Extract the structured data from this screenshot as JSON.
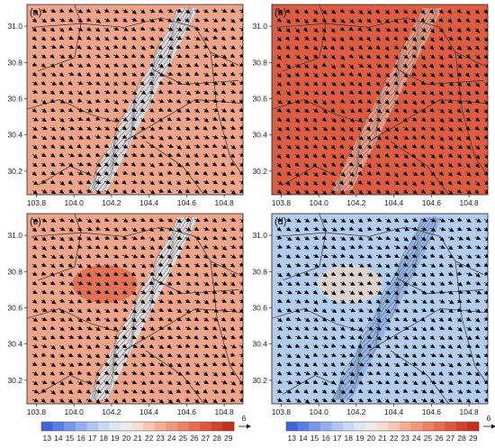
{
  "panels": [
    {
      "label": "(a)",
      "base_color": "#f0a489",
      "warm_color": "#ea8867",
      "cool_color": "#d9dde4",
      "warm_blob": false
    },
    {
      "label": "(b)",
      "base_color": "#de5c42",
      "warm_color": "#d94c34",
      "cool_color": "#e9a08a",
      "warm_blob": false
    },
    {
      "label": "(c)",
      "base_color": "#f0a489",
      "warm_color": "#e06a4c",
      "cool_color": "#dfe0e6",
      "warm_blob": true
    },
    {
      "label": "(d)",
      "base_color": "#b3cdee",
      "warm_color": "#e6d4cc",
      "cool_color": "#8fb3e8",
      "warm_blob": true
    }
  ],
  "axes": {
    "x_ticks": [
      "103.8",
      "104.0",
      "104.2",
      "104.4",
      "104.6",
      "104.8"
    ],
    "y_ticks": [
      "31.0",
      "30.8",
      "30.6",
      "30.4",
      "30.2"
    ],
    "x_range": [
      103.75,
      104.9
    ],
    "y_range": [
      30.07,
      31.12
    ]
  },
  "colorbar": {
    "labels": [
      "13",
      "14",
      "15",
      "16",
      "17",
      "18",
      "19",
      "20",
      "21",
      "22",
      "23",
      "24",
      "25",
      "26",
      "27",
      "28",
      "29"
    ],
    "colors": [
      "#3e66d9",
      "#5a7fe0",
      "#7898e6",
      "#94b0ec",
      "#afc6f1",
      "#c9daf5",
      "#dde6f4",
      "#ececec",
      "#f4ddd2",
      "#f5c7b4",
      "#f3b096",
      "#f09a7c",
      "#eb8464",
      "#e46e4f",
      "#dc583c",
      "#d1432b",
      "#c3301e"
    ],
    "vector_ref": "6"
  }
}
